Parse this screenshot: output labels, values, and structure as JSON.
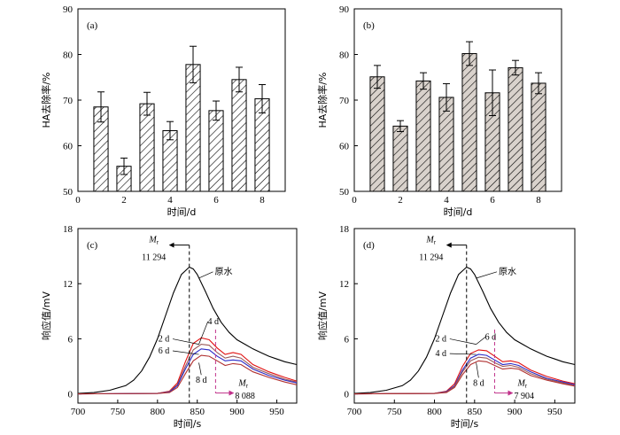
{
  "chart_data": [
    {
      "type": "bar",
      "panel_label": "(a)",
      "xlabel": "时间/d",
      "ylabel": "HA去除率/%",
      "xlim": [
        0,
        9
      ],
      "ylim": [
        50,
        90
      ],
      "xticks": [
        0,
        2,
        4,
        6,
        8
      ],
      "yticks": [
        50,
        60,
        70,
        80,
        90
      ],
      "fill": "hatch",
      "x": [
        1,
        2,
        3,
        4,
        5,
        6,
        7,
        8
      ],
      "values": [
        68.5,
        55.5,
        69.2,
        63.3,
        77.8,
        67.7,
        74.5,
        70.3
      ],
      "errors": [
        3.3,
        1.8,
        2.5,
        2.0,
        4.0,
        2.1,
        2.7,
        3.1
      ]
    },
    {
      "type": "bar",
      "panel_label": "(b)",
      "xlabel": "时间/d",
      "ylabel": "HA去除率/%",
      "xlim": [
        0,
        9
      ],
      "ylim": [
        50,
        90
      ],
      "xticks": [
        0,
        2,
        4,
        6,
        8
      ],
      "yticks": [
        50,
        60,
        70,
        80,
        90
      ],
      "fill": "hatch-gray",
      "x": [
        1,
        2,
        3,
        4,
        5,
        6,
        7,
        8
      ],
      "values": [
        75.1,
        64.3,
        74.2,
        70.6,
        80.2,
        71.6,
        77.1,
        73.7
      ],
      "errors": [
        2.5,
        1.2,
        1.8,
        3.0,
        2.6,
        5.0,
        1.6,
        2.3
      ]
    },
    {
      "type": "line",
      "panel_label": "(c)",
      "xlabel": "时间/s",
      "ylabel": "响应值/mV",
      "xlim": [
        700,
        975
      ],
      "ylim": [
        -1,
        18
      ],
      "xticks": [
        700,
        750,
        800,
        850,
        900,
        950
      ],
      "yticks": [
        0,
        6,
        12,
        18
      ],
      "series": [
        {
          "name": "原水",
          "color": "#000000",
          "x": [
            700,
            720,
            740,
            760,
            770,
            780,
            790,
            800,
            810,
            820,
            830,
            840,
            845,
            850,
            860,
            870,
            880,
            890,
            900,
            910,
            920,
            930,
            940,
            950,
            960,
            975
          ],
          "y": [
            0.05,
            0.15,
            0.4,
            0.9,
            1.5,
            2.5,
            4.0,
            6.0,
            8.5,
            11.0,
            13.0,
            13.8,
            13.6,
            13.0,
            11.2,
            9.3,
            7.8,
            6.7,
            5.9,
            5.4,
            4.9,
            4.5,
            4.1,
            3.8,
            3.5,
            3.2
          ]
        },
        {
          "name": "2 d",
          "color": "#e01010",
          "x": [
            700,
            800,
            815,
            825,
            835,
            845,
            855,
            865,
            875,
            885,
            895,
            905,
            920,
            940,
            960,
            975
          ],
          "y": [
            0.0,
            0.05,
            0.3,
            1.2,
            3.5,
            5.5,
            6.1,
            5.9,
            5.0,
            4.3,
            4.5,
            4.3,
            3.2,
            2.4,
            1.8,
            1.4
          ]
        },
        {
          "name": "4 d",
          "color": "#9a5a5a",
          "x": [
            700,
            800,
            815,
            825,
            835,
            845,
            855,
            865,
            875,
            885,
            895,
            905,
            920,
            940,
            960,
            975
          ],
          "y": [
            0.0,
            0.05,
            0.25,
            1.0,
            3.0,
            4.8,
            5.4,
            5.3,
            4.5,
            3.9,
            4.1,
            3.9,
            2.9,
            2.2,
            1.6,
            1.3
          ]
        },
        {
          "name": "6 d",
          "color": "#2a2ac8",
          "x": [
            700,
            800,
            815,
            825,
            835,
            845,
            855,
            865,
            875,
            885,
            895,
            905,
            920,
            940,
            960,
            975
          ],
          "y": [
            0.0,
            0.05,
            0.2,
            0.9,
            2.7,
            4.3,
            4.9,
            4.8,
            4.1,
            3.6,
            3.7,
            3.6,
            2.7,
            2.0,
            1.5,
            1.2
          ]
        },
        {
          "name": "8 d",
          "color": "#b03030",
          "x": [
            700,
            800,
            815,
            825,
            835,
            845,
            855,
            865,
            875,
            885,
            895,
            905,
            920,
            940,
            960,
            975
          ],
          "y": [
            0.0,
            0.05,
            0.15,
            0.7,
            2.2,
            3.6,
            4.2,
            4.1,
            3.6,
            3.1,
            3.3,
            3.2,
            2.4,
            1.8,
            1.3,
            1.0
          ]
        }
      ],
      "markers": [
        {
          "label_html": "M",
          "sub": "r",
          "value": "11 294",
          "x": 840,
          "color": "#000000",
          "direction": "left"
        },
        {
          "label_html": "M",
          "sub": "r",
          "value": "8 088",
          "x": 873,
          "color": "#c0308a",
          "direction": "right"
        }
      ],
      "labels": [
        "2 d",
        "4 d",
        "6 d",
        "8 d",
        "原水"
      ]
    },
    {
      "type": "line",
      "panel_label": "(d)",
      "xlabel": "时间/s",
      "ylabel": "响应值/mV",
      "xlim": [
        700,
        975
      ],
      "ylim": [
        -1,
        18
      ],
      "xticks": [
        700,
        750,
        800,
        850,
        900,
        950
      ],
      "yticks": [
        0,
        6,
        12,
        18
      ],
      "series": [
        {
          "name": "原水",
          "color": "#000000",
          "x": [
            700,
            720,
            740,
            760,
            770,
            780,
            790,
            800,
            810,
            820,
            830,
            840,
            845,
            850,
            860,
            870,
            880,
            890,
            900,
            910,
            920,
            930,
            940,
            950,
            960,
            975
          ],
          "y": [
            0.05,
            0.15,
            0.4,
            0.9,
            1.5,
            2.5,
            4.0,
            6.0,
            8.5,
            11.0,
            13.0,
            13.8,
            13.6,
            13.0,
            11.2,
            9.3,
            7.8,
            6.7,
            5.9,
            5.4,
            4.9,
            4.5,
            4.1,
            3.8,
            3.5,
            3.2
          ]
        },
        {
          "name": "2 d",
          "color": "#e01010",
          "x": [
            700,
            800,
            815,
            825,
            835,
            845,
            855,
            865,
            875,
            885,
            895,
            905,
            920,
            940,
            960,
            975
          ],
          "y": [
            0.0,
            0.05,
            0.3,
            1.1,
            3.0,
            4.4,
            4.8,
            4.7,
            4.1,
            3.5,
            3.6,
            3.4,
            2.6,
            1.9,
            1.4,
            1.1
          ]
        },
        {
          "name": "4 d",
          "color": "#2a2ac8",
          "x": [
            700,
            800,
            815,
            825,
            835,
            845,
            855,
            865,
            875,
            885,
            895,
            905,
            920,
            940,
            960,
            975
          ],
          "y": [
            0.0,
            0.05,
            0.25,
            0.9,
            2.6,
            3.9,
            4.3,
            4.2,
            3.7,
            3.2,
            3.3,
            3.1,
            2.4,
            1.7,
            1.3,
            1.0
          ]
        },
        {
          "name": "6 d",
          "color": "#9a5a5a",
          "x": [
            700,
            800,
            815,
            825,
            835,
            845,
            855,
            865,
            875,
            885,
            895,
            905,
            920,
            940,
            960,
            975
          ],
          "y": [
            0.0,
            0.05,
            0.2,
            0.8,
            2.4,
            3.6,
            4.0,
            3.9,
            3.4,
            3.0,
            3.1,
            2.9,
            2.2,
            1.6,
            1.2,
            0.9
          ]
        },
        {
          "name": "8 d",
          "color": "#b03030",
          "x": [
            700,
            800,
            815,
            825,
            835,
            845,
            855,
            865,
            875,
            885,
            895,
            905,
            920,
            940,
            960,
            975
          ],
          "y": [
            0.0,
            0.05,
            0.15,
            0.7,
            2.1,
            3.2,
            3.6,
            3.5,
            3.1,
            2.7,
            2.8,
            2.7,
            2.0,
            1.5,
            1.1,
            0.85
          ]
        }
      ],
      "markers": [
        {
          "label_html": "M",
          "sub": "r",
          "value": "11 294",
          "x": 840,
          "color": "#000000",
          "direction": "left"
        },
        {
          "label_html": "M",
          "sub": "r",
          "value": "7 904",
          "x": 875,
          "color": "#c0308a",
          "direction": "right"
        }
      ],
      "labels": [
        "2 d",
        "6 d",
        "4 d",
        "8 d",
        "原水"
      ]
    }
  ]
}
